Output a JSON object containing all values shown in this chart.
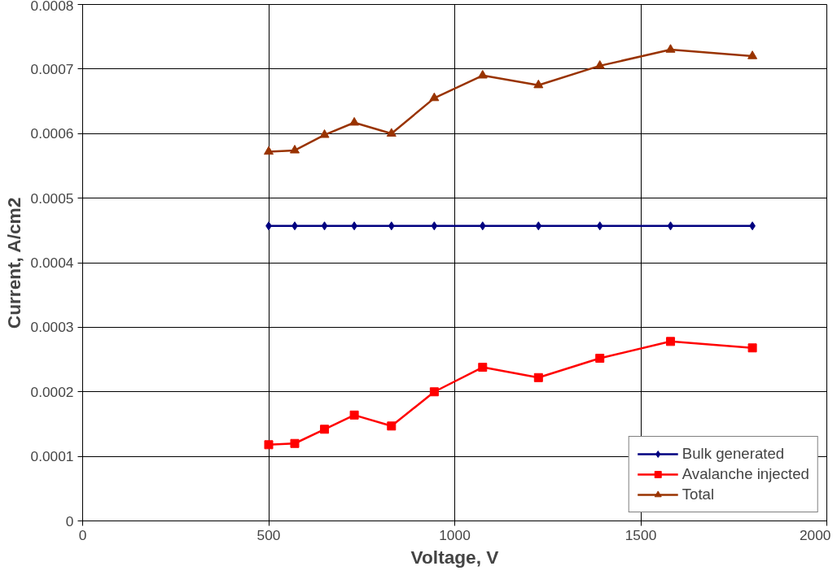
{
  "chart_data": {
    "type": "line",
    "xlabel": "Voltage, V",
    "ylabel": "Current, A/cm2",
    "x": [
      500,
      570,
      650,
      730,
      830,
      945,
      1075,
      1225,
      1390,
      1580,
      1800
    ],
    "series": [
      {
        "name": "Bulk generated",
        "color": "#000080",
        "marker": "diamond",
        "values": [
          0.000457,
          0.000457,
          0.000457,
          0.000457,
          0.000457,
          0.000457,
          0.000457,
          0.000457,
          0.000457,
          0.000457,
          0.000457
        ]
      },
      {
        "name": "Avalanche injected",
        "color": "#ff0000",
        "marker": "square",
        "values": [
          0.000118,
          0.00012,
          0.000142,
          0.000164,
          0.000147,
          0.0002,
          0.000238,
          0.000222,
          0.000252,
          0.000278,
          0.000268
        ]
      },
      {
        "name": "Total",
        "color": "#993300",
        "marker": "triangle",
        "values": [
          0.000572,
          0.000574,
          0.000598,
          0.000617,
          0.0006,
          0.000655,
          0.00069,
          0.000675,
          0.000705,
          0.00073,
          0.00072
        ]
      }
    ],
    "xlim": [
      0,
      2000
    ],
    "xticks": [
      0,
      500,
      1000,
      1500,
      2000
    ],
    "ylim": [
      0,
      0.0008
    ],
    "yticks": [
      0,
      0.0001,
      0.0002,
      0.0003,
      0.0004,
      0.0005,
      0.0006,
      0.0007,
      0.0008
    ],
    "grid": true,
    "legend": "bottom right"
  }
}
